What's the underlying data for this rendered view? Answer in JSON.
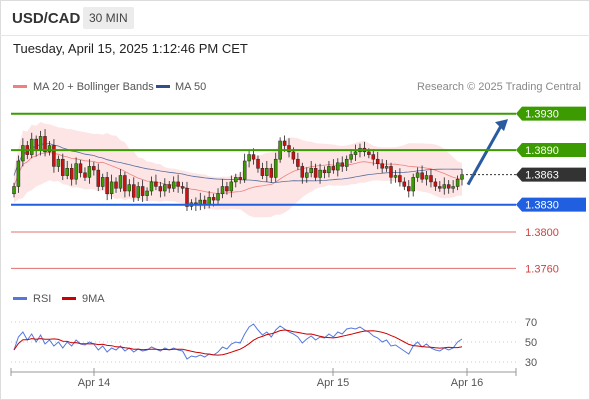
{
  "header": {
    "symbol": "USD/CAD",
    "timeframe": "30 MIN",
    "datetime": "Tuesday, April 15, 2025 1:12:46 PM CET"
  },
  "colors": {
    "bollinger": "#f08080",
    "bollinger_fill": "#fde2e2",
    "ma50": "#2e4f8a",
    "resistance": "#3c9b00",
    "support": "#1f5fe0",
    "minor_support": "#d04040",
    "price": "#333333",
    "rsi": "#5577dd",
    "rsi_ma": "#cc0000",
    "arrow": "#2a5aa0",
    "candle_up": "#3c9b00",
    "candle_down": "#cc1111"
  },
  "chart_data": [
    {
      "type": "candlestick",
      "legend": [
        {
          "name": "MA 20 + Bollinger Bands",
          "color": "#f08080"
        },
        {
          "name": "MA 50",
          "color": "#2e4f8a"
        }
      ],
      "copyright": "Research © 2025 Trading Central",
      "x_ticks": [
        "Apr 14",
        "Apr 15",
        "Apr 16"
      ],
      "ylim": [
        1.3745,
        1.3945
      ],
      "levels": [
        {
          "value": "1.3930",
          "kind": "resistance"
        },
        {
          "value": "1.3890",
          "kind": "resistance"
        },
        {
          "value": "1.3863",
          "kind": "price"
        },
        {
          "value": "1.3830",
          "kind": "support"
        },
        {
          "value": "1.3800",
          "kind": "minor"
        },
        {
          "value": "1.3760",
          "kind": "minor"
        }
      ],
      "forecast_arrow": {
        "from": 1.3852,
        "to": 1.3924
      },
      "closes": [
        1.385,
        1.3878,
        1.3895,
        1.3885,
        1.3902,
        1.389,
        1.3905,
        1.3888,
        1.3895,
        1.3872,
        1.388,
        1.3862,
        1.387,
        1.3858,
        1.3875,
        1.3865,
        1.386,
        1.3872,
        1.3868,
        1.385,
        1.386,
        1.3842,
        1.3855,
        1.3848,
        1.3862,
        1.3845,
        1.3852,
        1.3838,
        1.385,
        1.384,
        1.3845,
        1.3855,
        1.385,
        1.3845,
        1.3852,
        1.3848,
        1.3855,
        1.385,
        1.3848,
        1.3828,
        1.3832,
        1.383,
        1.3835,
        1.383,
        1.3838,
        1.3835,
        1.3842,
        1.385,
        1.3845,
        1.3855,
        1.386,
        1.3858,
        1.3878,
        1.3885,
        1.388,
        1.387,
        1.3862,
        1.387,
        1.386,
        1.388,
        1.39,
        1.3895,
        1.3888,
        1.388,
        1.3872,
        1.386,
        1.3865,
        1.387,
        1.386,
        1.3868,
        1.3865,
        1.3872,
        1.3868,
        1.3876,
        1.3872,
        1.388,
        1.3885,
        1.3888,
        1.3892,
        1.3888,
        1.3885,
        1.388,
        1.3875,
        1.387,
        1.3872,
        1.386,
        1.3862,
        1.3855,
        1.385,
        1.3845,
        1.386,
        1.3865,
        1.3858,
        1.3862,
        1.3855,
        1.385,
        1.3848,
        1.3852,
        1.3848,
        1.385,
        1.3858,
        1.3863
      ]
    },
    {
      "type": "line",
      "legend": [
        {
          "name": "RSI",
          "color": "#5577dd"
        },
        {
          "name": "9MA",
          "color": "#cc0000"
        }
      ],
      "y_ticks": [
        "70",
        "50",
        "30"
      ],
      "ylim": [
        20,
        80
      ],
      "rsi": [
        42,
        55,
        60,
        52,
        58,
        50,
        57,
        48,
        52,
        46,
        50,
        44,
        50,
        46,
        52,
        48,
        47,
        50,
        48,
        42,
        46,
        40,
        44,
        42,
        46,
        41,
        44,
        40,
        43,
        41,
        42,
        45,
        43,
        41,
        44,
        42,
        44,
        42,
        41,
        33,
        36,
        35,
        37,
        35,
        38,
        37,
        40,
        45,
        43,
        48,
        50,
        49,
        58,
        65,
        68,
        62,
        57,
        60,
        55,
        62,
        66,
        63,
        60,
        58,
        55,
        49,
        53,
        56,
        52,
        55,
        54,
        58,
        55,
        60,
        58,
        63,
        64,
        63,
        65,
        62,
        60,
        56,
        54,
        50,
        52,
        46,
        47,
        44,
        41,
        38,
        46,
        50,
        45,
        48,
        44,
        42,
        41,
        44,
        42,
        44,
        50,
        53
      ]
    }
  ]
}
